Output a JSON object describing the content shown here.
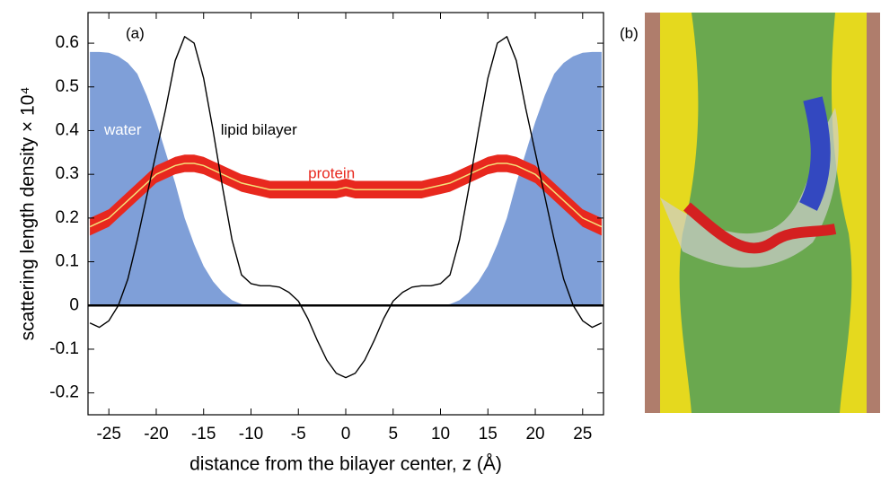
{
  "chart_data": {
    "type": "line",
    "panel_a_label": "(a)",
    "panel_b_label": "(b)",
    "x_label": "distance from the bilayer center, z (Å)",
    "y_label": "scattering length density × 10⁴",
    "x": [
      -27,
      -26,
      -25,
      -24,
      -23,
      -22,
      -21,
      -20,
      -19,
      -18,
      -17,
      -16,
      -15,
      -14,
      -13,
      -12,
      -11,
      -10,
      -9,
      -8,
      -7,
      -6,
      -5,
      -4,
      -3,
      -2,
      -1,
      0,
      1,
      2,
      3,
      4,
      5,
      6,
      7,
      8,
      9,
      10,
      11,
      12,
      13,
      14,
      15,
      16,
      17,
      18,
      19,
      20,
      21,
      22,
      23,
      24,
      25,
      26,
      27
    ],
    "series": [
      {
        "name": "water",
        "kind": "area",
        "color": "#7f9fd8",
        "values": [
          0.58,
          0.58,
          0.578,
          0.57,
          0.555,
          0.53,
          0.48,
          0.42,
          0.35,
          0.28,
          0.2,
          0.14,
          0.09,
          0.055,
          0.03,
          0.012,
          0.003,
          0,
          0,
          0,
          0,
          0,
          0,
          0,
          0,
          0,
          0,
          0,
          0,
          0,
          0,
          0,
          0,
          0,
          0,
          0,
          0,
          0,
          0.003,
          0.012,
          0.03,
          0.055,
          0.09,
          0.14,
          0.2,
          0.28,
          0.35,
          0.42,
          0.48,
          0.53,
          0.555,
          0.57,
          0.578,
          0.58,
          0.58
        ]
      },
      {
        "name": "lipid bilayer",
        "kind": "line",
        "color": "#000000",
        "values": [
          -0.04,
          -0.05,
          -0.035,
          0,
          0.06,
          0.15,
          0.25,
          0.35,
          0.45,
          0.56,
          0.615,
          0.6,
          0.52,
          0.4,
          0.27,
          0.15,
          0.07,
          0.05,
          0.045,
          0.045,
          0.042,
          0.03,
          0.01,
          -0.03,
          -0.08,
          -0.125,
          -0.155,
          -0.165,
          -0.155,
          -0.125,
          -0.08,
          -0.03,
          0.01,
          0.03,
          0.042,
          0.045,
          0.045,
          0.05,
          0.07,
          0.15,
          0.27,
          0.4,
          0.52,
          0.6,
          0.615,
          0.56,
          0.45,
          0.35,
          0.25,
          0.15,
          0.06,
          0,
          -0.035,
          -0.05,
          -0.04
        ]
      },
      {
        "name": "protein",
        "kind": "band",
        "color": "#e8281e",
        "center_color": "#f5e07a",
        "error": 0.02,
        "values": [
          0.18,
          0.19,
          0.2,
          0.22,
          0.24,
          0.26,
          0.28,
          0.3,
          0.31,
          0.32,
          0.325,
          0.325,
          0.32,
          0.31,
          0.3,
          0.29,
          0.28,
          0.275,
          0.27,
          0.265,
          0.265,
          0.265,
          0.265,
          0.265,
          0.265,
          0.265,
          0.265,
          0.27,
          0.265,
          0.265,
          0.265,
          0.265,
          0.265,
          0.265,
          0.265,
          0.265,
          0.27,
          0.275,
          0.28,
          0.29,
          0.3,
          0.31,
          0.32,
          0.325,
          0.325,
          0.32,
          0.31,
          0.3,
          0.28,
          0.26,
          0.24,
          0.22,
          0.2,
          0.19,
          0.18
        ]
      }
    ],
    "xlim": [
      -27.2,
      27.2
    ],
    "ylim": [
      -0.25,
      0.67
    ],
    "xticks": [
      -25,
      -20,
      -15,
      -10,
      -5,
      0,
      5,
      10,
      15,
      20,
      25
    ],
    "yticks": [
      -0.2,
      -0.1,
      0,
      0.1,
      0.2,
      0.3,
      0.4,
      0.5,
      0.6
    ]
  }
}
